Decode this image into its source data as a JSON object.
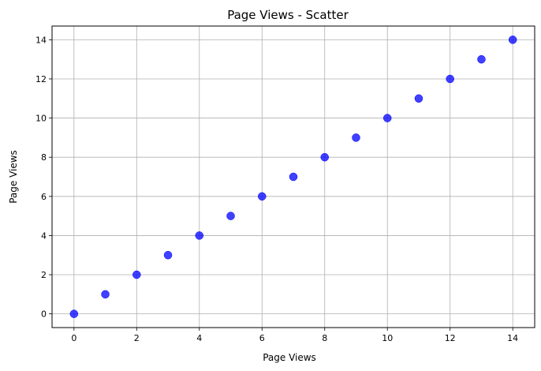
{
  "chart_data": {
    "type": "scatter",
    "title": "Page Views - Scatter",
    "xlabel": "Page Views",
    "ylabel": "Page Views",
    "xlim": [
      -0.7,
      14.7
    ],
    "ylim": [
      -0.7,
      14.7
    ],
    "xticks": [
      0,
      2,
      4,
      6,
      8,
      10,
      12,
      14
    ],
    "yticks": [
      0,
      2,
      4,
      6,
      8,
      10,
      12,
      14
    ],
    "grid": true,
    "point_color": "#0000ff",
    "series": [
      {
        "x": [
          0,
          1,
          2,
          3,
          4,
          5,
          6,
          7,
          8,
          9,
          10,
          11,
          12,
          13,
          14
        ],
        "y": [
          0,
          1,
          2,
          3,
          4,
          5,
          6,
          7,
          8,
          9,
          10,
          11,
          12,
          13,
          14
        ]
      }
    ]
  }
}
